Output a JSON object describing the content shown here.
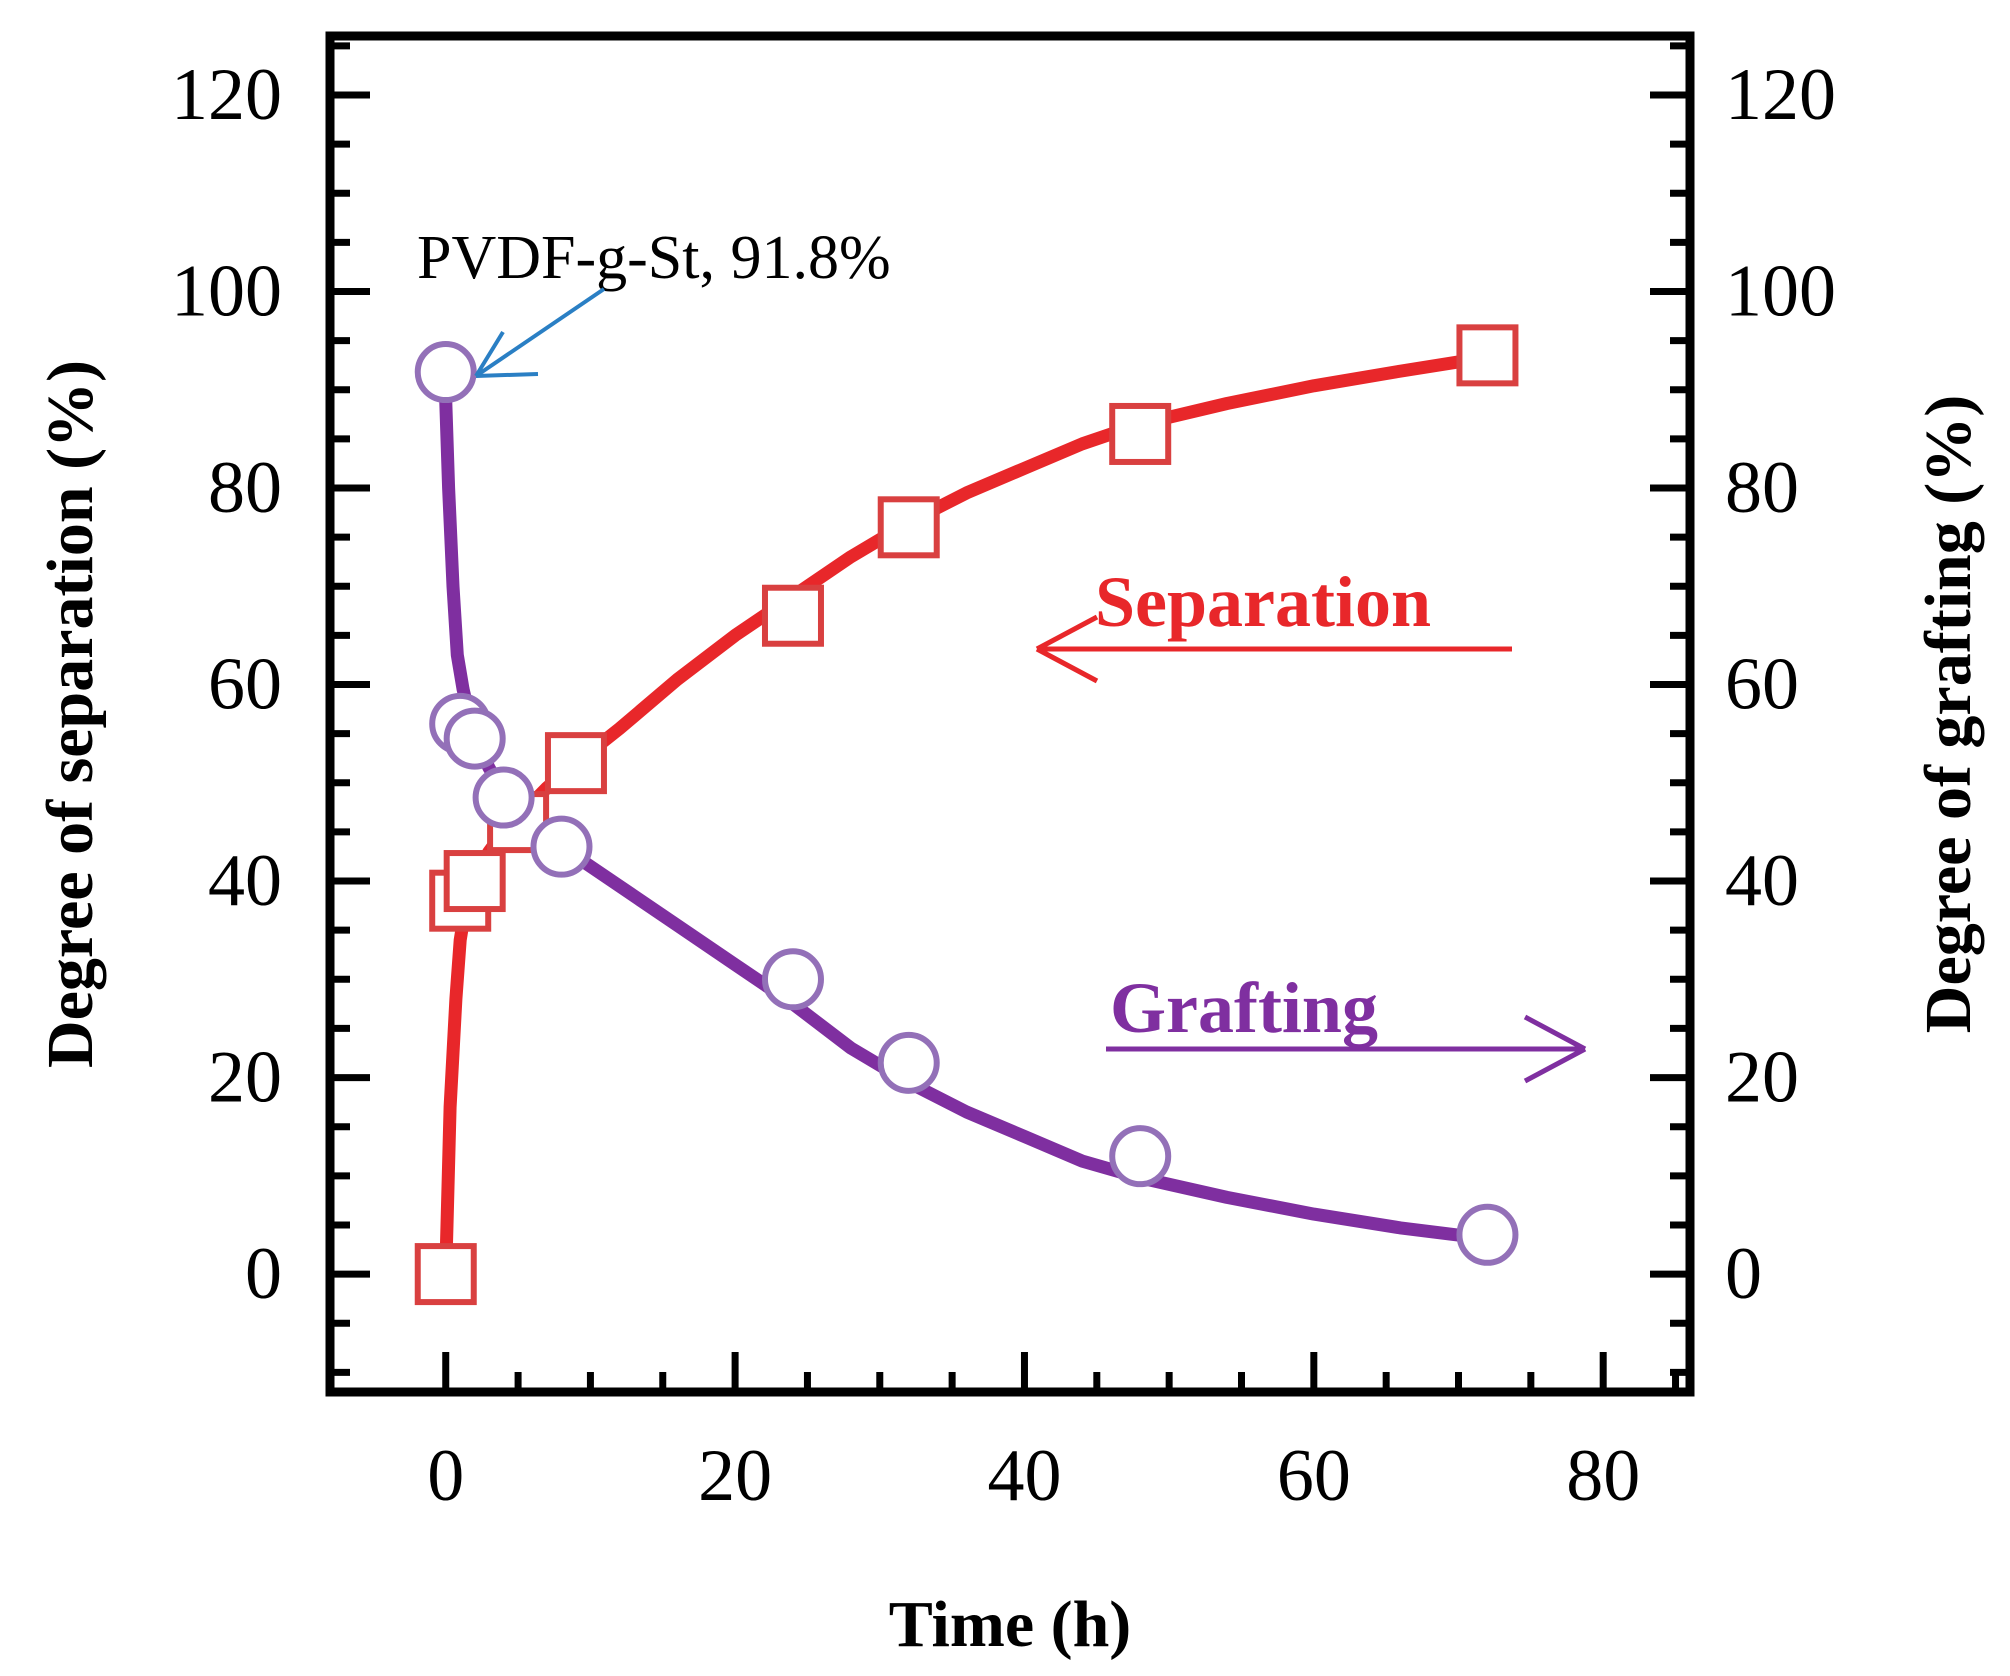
{
  "chart_data": {
    "type": "line",
    "xlabel": "Time (h)",
    "ylabel_left": "Degree of separation (%)",
    "ylabel_right": "Degree of grafting (%)",
    "xlim": [
      -8,
      86
    ],
    "ylim": [
      -12,
      126
    ],
    "xticks": [
      0,
      20,
      40,
      60,
      80
    ],
    "yticks": [
      0,
      20,
      40,
      60,
      80,
      100,
      120
    ],
    "grid": false,
    "series": [
      {
        "name": "Separation",
        "axis": "left",
        "marker": "square",
        "color": "#e8272a",
        "marker_color": "#d94040",
        "x": [
          0,
          1,
          2,
          5,
          9,
          24,
          32,
          48,
          72
        ],
        "values": [
          0,
          38,
          40,
          46,
          52,
          67,
          76,
          85.5,
          93.5
        ],
        "fit": {
          "x": [
            0,
            0.3,
            0.7,
            1,
            1.5,
            2,
            3,
            4,
            5,
            7,
            9,
            12,
            16,
            20,
            24,
            28,
            32,
            36,
            40,
            44,
            48,
            54,
            60,
            66,
            72
          ],
          "y": [
            0,
            17,
            28,
            34,
            38.5,
            40.5,
            43,
            45,
            46.5,
            49.5,
            52,
            55.5,
            60.5,
            65,
            69,
            73,
            76.5,
            79.5,
            82,
            84.5,
            86.5,
            88.6,
            90.4,
            91.9,
            93.3
          ]
        }
      },
      {
        "name": "Grafting",
        "axis": "right",
        "marker": "circle",
        "color": "#7f2fa0",
        "marker_color": "#9370b8",
        "x": [
          0,
          1,
          2,
          4,
          8,
          24,
          32,
          48,
          72
        ],
        "values": [
          91.8,
          56,
          54.5,
          48.5,
          43.5,
          30,
          21.5,
          12,
          4
        ],
        "fit": {
          "x": [
            0,
            0.2,
            0.5,
            0.8,
            1.2,
            1.6,
            2,
            2.5,
            3,
            4,
            5,
            6,
            8,
            12,
            16,
            20,
            24,
            28,
            32,
            36,
            40,
            44,
            48,
            54,
            60,
            66,
            72
          ],
          "y": [
            89,
            80,
            70,
            63,
            59.5,
            57,
            55,
            53,
            51.5,
            49,
            47.5,
            46,
            43.5,
            39.5,
            35.5,
            31.5,
            27.5,
            23,
            19.5,
            16.5,
            14,
            11.5,
            9.8,
            7.8,
            6.1,
            4.7,
            3.6
          ]
        }
      }
    ],
    "annotations": {
      "point_label": "PVDF-g-St, 91.8%",
      "point_label_color": "#2a7fc4",
      "separation_label": "Separation",
      "grafting_label": "Grafting"
    }
  }
}
